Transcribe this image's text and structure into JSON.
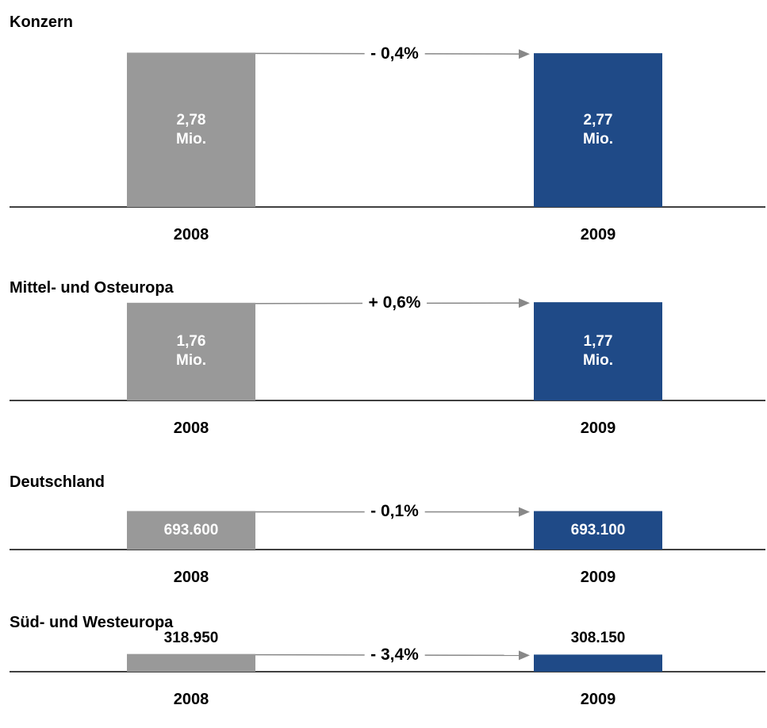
{
  "chart_data": [
    {
      "type": "bar",
      "title": "Konzern",
      "categories": [
        "2008",
        "2009"
      ],
      "values": [
        2780000,
        2770000
      ],
      "value_labels": [
        "2,78 Mio.",
        "2,77 Mio."
      ],
      "colors": [
        "#999999",
        "#1f4a87"
      ],
      "annotation": "- 0,4%"
    },
    {
      "type": "bar",
      "title": "Mittel- und Osteuropa",
      "categories": [
        "2008",
        "2009"
      ],
      "values": [
        1760000,
        1770000
      ],
      "value_labels": [
        "1,76 Mio.",
        "1,77 Mio."
      ],
      "colors": [
        "#999999",
        "#1f4a87"
      ],
      "annotation": "+ 0,6%"
    },
    {
      "type": "bar",
      "title": "Deutschland",
      "categories": [
        "2008",
        "2009"
      ],
      "values": [
        693600,
        693100
      ],
      "value_labels": [
        "693.600",
        "693.100"
      ],
      "colors": [
        "#999999",
        "#1f4a87"
      ],
      "annotation": "- 0,1%"
    },
    {
      "type": "bar",
      "title": "Süd- und Westeuropa",
      "categories": [
        "2008",
        "2009"
      ],
      "values": [
        318950,
        308150
      ],
      "value_labels": [
        "318.950",
        "308.150"
      ],
      "colors": [
        "#999999",
        "#1f4a87"
      ],
      "annotation": "- 3,4%"
    }
  ]
}
